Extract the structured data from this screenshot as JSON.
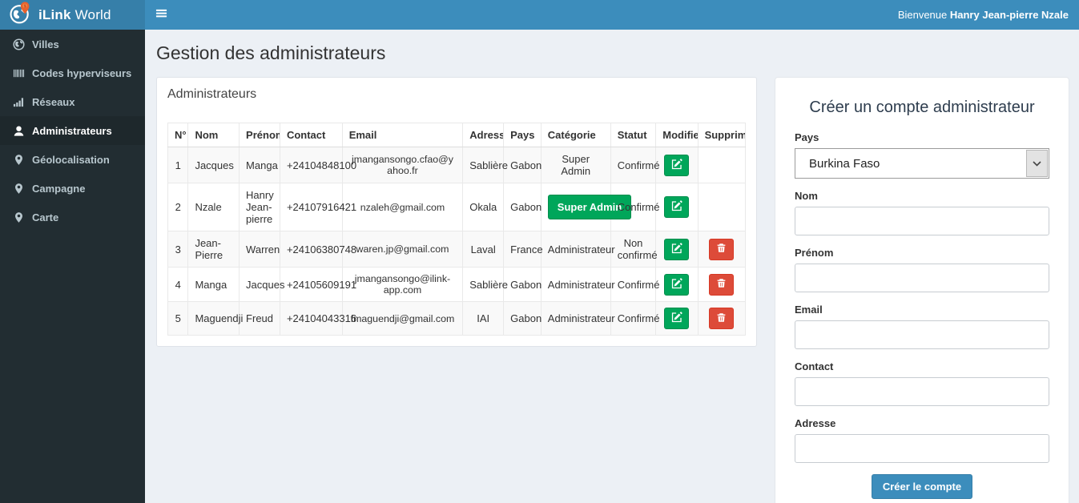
{
  "header": {
    "brand_bold": "iLink",
    "brand_rest": " World",
    "welcome_prefix": "Bienvenue ",
    "welcome_name": "Hanry Jean-pierre Nzale"
  },
  "sidebar": {
    "items": [
      {
        "label": "Villes",
        "icon": "globe-icon",
        "active": false
      },
      {
        "label": "Codes hyperviseurs",
        "icon": "barcode-icon",
        "active": false
      },
      {
        "label": "Réseaux",
        "icon": "signal-icon",
        "active": false
      },
      {
        "label": "Administrateurs",
        "icon": "user-icon",
        "active": true
      },
      {
        "label": "Géolocalisation",
        "icon": "map-marker-icon",
        "active": false
      },
      {
        "label": "Campagne",
        "icon": "map-marker-icon",
        "active": false
      },
      {
        "label": "Carte",
        "icon": "map-marker-icon",
        "active": false
      }
    ]
  },
  "page": {
    "title": "Gestion des administrateurs"
  },
  "admin_table": {
    "panel_title": "Administrateurs",
    "columns": [
      "N°",
      "Nom",
      "Prénom",
      "Contact",
      "Email",
      "Adresse",
      "Pays",
      "Catégorie",
      "Statut",
      "Modifier",
      "Supprimer"
    ],
    "rows": [
      {
        "num": "1",
        "nom": "Jacques",
        "prenom": "Manga",
        "contact": "+24104848100",
        "email": "jmangansongo.cfao@yahoo.fr",
        "adresse": "Sablière",
        "pays": "Gabon",
        "categorie": "Super Admin",
        "categorie_style": "text",
        "statut": "Confirmé",
        "can_delete": false
      },
      {
        "num": "2",
        "nom": "Nzale",
        "prenom": "Hanry Jean-pierre",
        "contact": "+24107916421",
        "email": "nzaleh@gmail.com",
        "adresse": "Okala",
        "pays": "Gabon",
        "categorie": "Super Admin",
        "categorie_style": "button",
        "statut": "Confirmé",
        "can_delete": false
      },
      {
        "num": "3",
        "nom": "Jean-Pierre",
        "prenom": "Warren",
        "contact": "+24106380748",
        "email": "waren.jp@gmail.com",
        "adresse": "Laval",
        "pays": "France",
        "categorie": "Administrateur",
        "categorie_style": "text",
        "statut": "Non confirmé",
        "can_delete": true
      },
      {
        "num": "4",
        "nom": "Manga",
        "prenom": "Jacques",
        "contact": "+24105609191",
        "email": "jmangansongo@ilink-app.com",
        "adresse": "Sablière",
        "pays": "Gabon",
        "categorie": "Administrateur",
        "categorie_style": "text",
        "statut": "Confirmé",
        "can_delete": true
      },
      {
        "num": "5",
        "nom": "Maguendji",
        "prenom": "Freud",
        "contact": "+24104043316",
        "email": "fmaguendji@gmail.com",
        "adresse": "IAI",
        "pays": "Gabon",
        "categorie": "Administrateur",
        "categorie_style": "text",
        "statut": "Confirmé",
        "can_delete": true
      }
    ]
  },
  "create_form": {
    "title": "Créer un compte administrateur",
    "pays_label": "Pays",
    "pays_value": "Burkina Faso",
    "nom_label": "Nom",
    "prenom_label": "Prénom",
    "email_label": "Email",
    "contact_label": "Contact",
    "adresse_label": "Adresse",
    "submit_label": "Créer le compte"
  },
  "colors": {
    "navbar_blue": "#3c8dbc",
    "brand_blue": "#367fa9",
    "sidebar_dark": "#222d32",
    "sidebar_active": "#1e282c",
    "content_bg": "#ecf0f5",
    "success_green": "#00a65a",
    "danger_red": "#dd4b39"
  }
}
